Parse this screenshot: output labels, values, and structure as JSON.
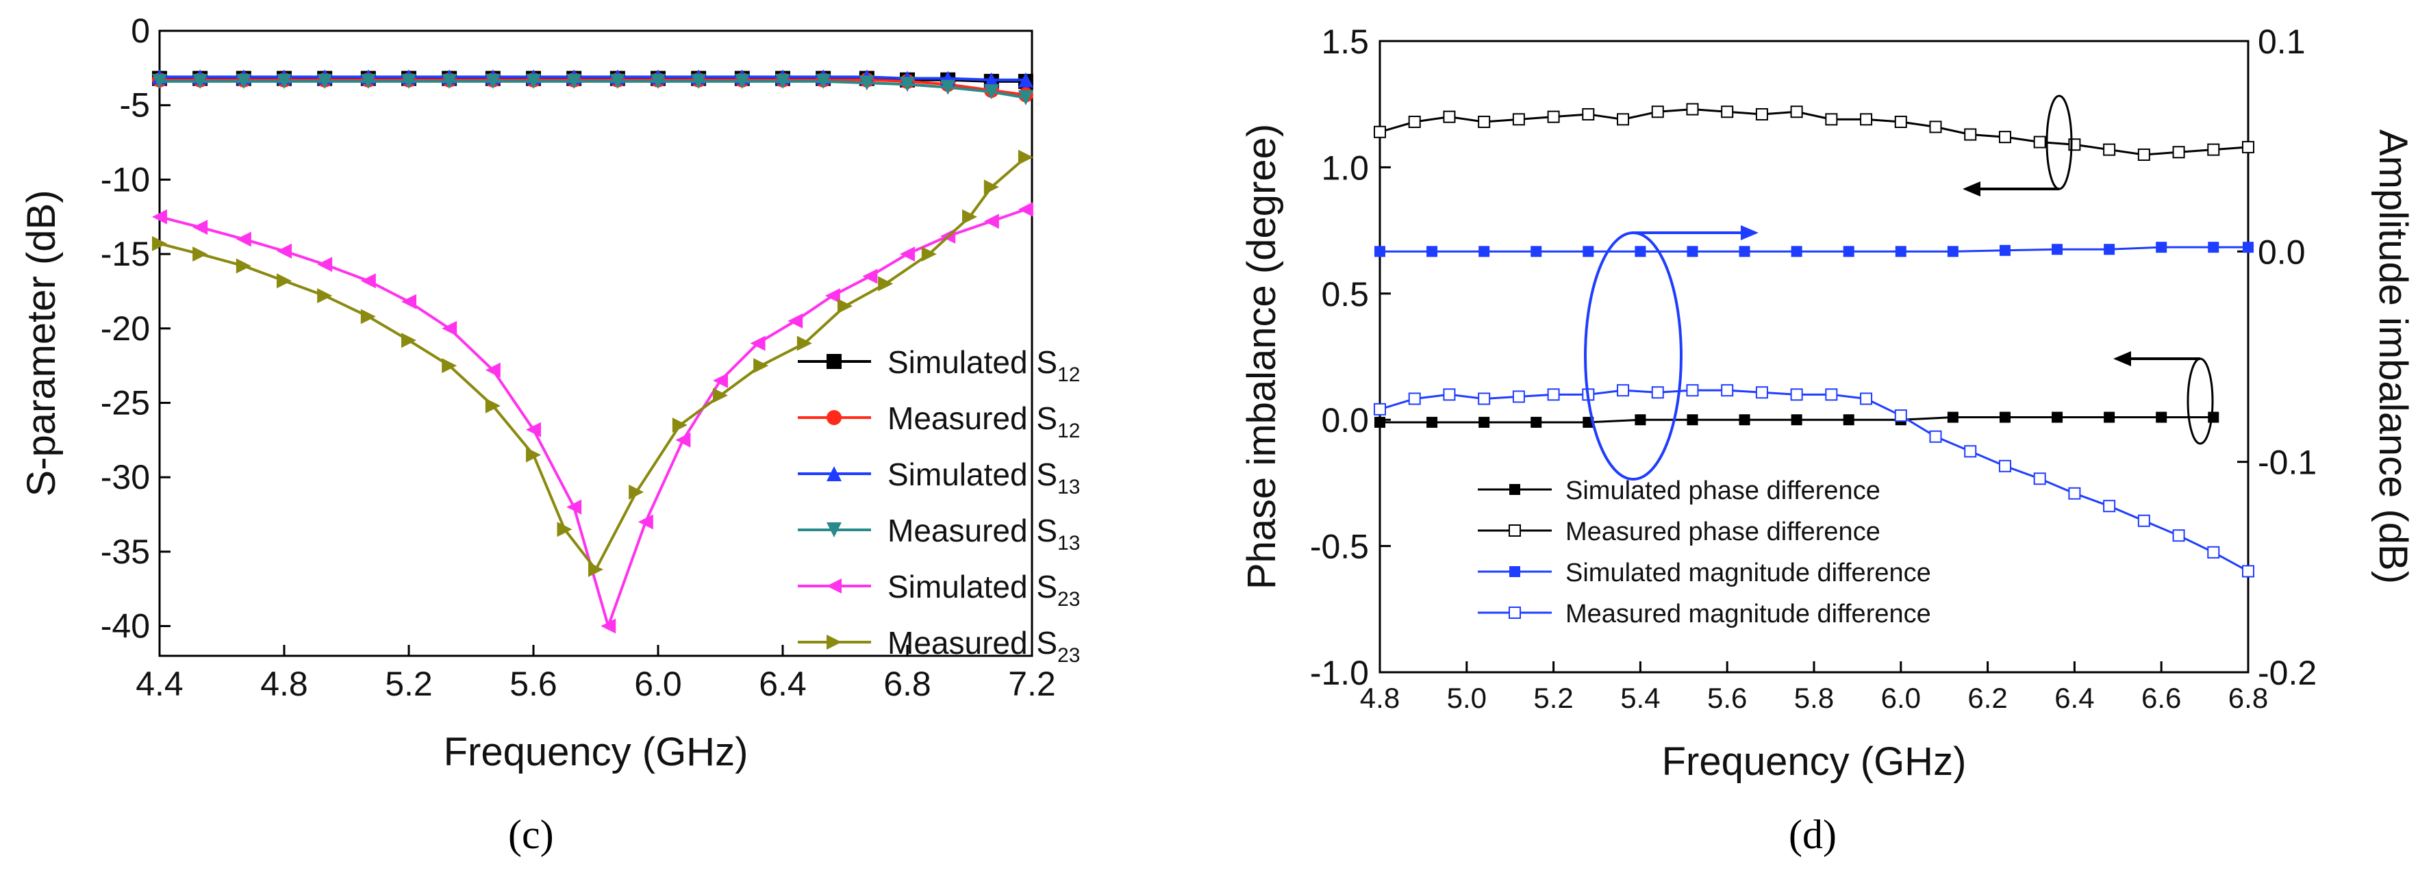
{
  "chart_data": [
    {
      "id": "c",
      "type": "line",
      "panel_label": "(c)",
      "xlabel": "Frequency (GHz)",
      "ylabel": "S-parameter (dB)",
      "xlim": [
        4.4,
        7.2
      ],
      "ylim": [
        -42,
        0
      ],
      "xticks": [
        4.4,
        4.8,
        5.2,
        5.6,
        6.0,
        6.4,
        6.8,
        7.2
      ],
      "xtick_labels": [
        "4.4",
        "4.8",
        "5.2",
        "5.6",
        "6.0",
        "6.4",
        "6.8",
        "7.2"
      ],
      "yticks": [
        0,
        -5,
        -10,
        -15,
        -20,
        -25,
        -30,
        -35,
        -40
      ],
      "ytick_labels": [
        "0",
        "-5",
        "-10",
        "-15",
        "-20",
        "-25",
        "-30",
        "-35",
        "-40"
      ],
      "legend_position": "lower-right",
      "series": [
        {
          "name": "Simulated S12",
          "label": "Simulated S",
          "sub": "12",
          "color": "#000000",
          "marker": "square",
          "x": [
            4.4,
            4.53,
            4.67,
            4.8,
            4.93,
            5.07,
            5.2,
            5.33,
            5.47,
            5.6,
            5.73,
            5.87,
            6.0,
            6.13,
            6.27,
            6.4,
            6.53,
            6.67,
            6.8,
            6.93,
            7.07,
            7.18
          ],
          "y": [
            -3.2,
            -3.2,
            -3.2,
            -3.2,
            -3.2,
            -3.2,
            -3.2,
            -3.2,
            -3.2,
            -3.2,
            -3.2,
            -3.2,
            -3.2,
            -3.2,
            -3.2,
            -3.2,
            -3.2,
            -3.2,
            -3.3,
            -3.3,
            -3.4,
            -3.4
          ]
        },
        {
          "name": "Measured S12",
          "label": "Measured S",
          "sub": "12",
          "color": "#ff2a1a",
          "marker": "circle",
          "x": [
            4.4,
            4.53,
            4.67,
            4.8,
            4.93,
            5.07,
            5.2,
            5.33,
            5.47,
            5.6,
            5.73,
            5.87,
            6.0,
            6.13,
            6.27,
            6.4,
            6.53,
            6.67,
            6.8,
            6.93,
            7.07,
            7.18
          ],
          "y": [
            -3.3,
            -3.3,
            -3.3,
            -3.3,
            -3.3,
            -3.3,
            -3.3,
            -3.3,
            -3.3,
            -3.3,
            -3.3,
            -3.3,
            -3.3,
            -3.3,
            -3.3,
            -3.3,
            -3.3,
            -3.3,
            -3.4,
            -3.6,
            -4.0,
            -4.3
          ]
        },
        {
          "name": "Simulated S13",
          "label": "Simulated S",
          "sub": "13",
          "color": "#1f3dff",
          "marker": "triangle-up",
          "x": [
            4.4,
            4.53,
            4.67,
            4.8,
            4.93,
            5.07,
            5.2,
            5.33,
            5.47,
            5.6,
            5.73,
            5.87,
            6.0,
            6.13,
            6.27,
            6.4,
            6.53,
            6.67,
            6.8,
            6.93,
            7.07,
            7.18
          ],
          "y": [
            -3.1,
            -3.1,
            -3.1,
            -3.1,
            -3.1,
            -3.1,
            -3.1,
            -3.1,
            -3.1,
            -3.1,
            -3.1,
            -3.1,
            -3.1,
            -3.1,
            -3.1,
            -3.1,
            -3.1,
            -3.1,
            -3.2,
            -3.2,
            -3.3,
            -3.3
          ]
        },
        {
          "name": "Measured S13",
          "label": "Measured S",
          "sub": "13",
          "color": "#2a8a8a",
          "marker": "triangle-down",
          "x": [
            4.4,
            4.53,
            4.67,
            4.8,
            4.93,
            5.07,
            5.2,
            5.33,
            5.47,
            5.6,
            5.73,
            5.87,
            6.0,
            6.13,
            6.27,
            6.4,
            6.53,
            6.67,
            6.8,
            6.93,
            7.07,
            7.18
          ],
          "y": [
            -3.4,
            -3.4,
            -3.4,
            -3.4,
            -3.4,
            -3.4,
            -3.4,
            -3.4,
            -3.4,
            -3.4,
            -3.4,
            -3.4,
            -3.4,
            -3.4,
            -3.4,
            -3.4,
            -3.4,
            -3.5,
            -3.6,
            -3.8,
            -4.1,
            -4.5
          ]
        },
        {
          "name": "Simulated S23",
          "label": "Simulated S",
          "sub": "23",
          "color": "#ff33ee",
          "marker": "triangle-left",
          "x": [
            4.4,
            4.53,
            4.67,
            4.8,
            4.93,
            5.07,
            5.2,
            5.33,
            5.47,
            5.6,
            5.73,
            5.84,
            5.96,
            6.08,
            6.2,
            6.32,
            6.44,
            6.56,
            6.68,
            6.8,
            6.93,
            7.07,
            7.18
          ],
          "y": [
            -12.5,
            -13.2,
            -14.0,
            -14.8,
            -15.7,
            -16.8,
            -18.2,
            -20.0,
            -22.8,
            -26.8,
            -32.0,
            -40.0,
            -33.0,
            -27.5,
            -23.5,
            -21.0,
            -19.5,
            -17.8,
            -16.5,
            -15.0,
            -13.8,
            -12.8,
            -12.0
          ]
        },
        {
          "name": "Measured S23",
          "label": "Measured S",
          "sub": "23",
          "color": "#8a8a10",
          "marker": "triangle-right",
          "x": [
            4.4,
            4.53,
            4.67,
            4.8,
            4.93,
            5.07,
            5.2,
            5.33,
            5.47,
            5.6,
            5.7,
            5.8,
            5.93,
            6.07,
            6.2,
            6.33,
            6.47,
            6.6,
            6.73,
            6.87,
            7.0,
            7.07,
            7.18
          ],
          "y": [
            -14.3,
            -15.0,
            -15.8,
            -16.8,
            -17.8,
            -19.2,
            -20.8,
            -22.5,
            -25.2,
            -28.5,
            -33.5,
            -36.2,
            -31.0,
            -26.5,
            -24.5,
            -22.5,
            -21.0,
            -18.5,
            -17.0,
            -15.0,
            -12.5,
            -10.5,
            -8.5
          ]
        }
      ]
    },
    {
      "id": "d",
      "type": "line",
      "panel_label": "(d)",
      "xlabel": "Frequency (GHz)",
      "ylabel": "Phase imbalance (degree)",
      "ylabel_right": "Amplitude imbalance (dB)",
      "xlim": [
        4.8,
        6.8
      ],
      "ylim": [
        -1.0,
        1.5
      ],
      "ylim_right": [
        -0.2,
        0.1
      ],
      "xticks": [
        4.8,
        5.0,
        5.2,
        5.4,
        5.6,
        5.8,
        6.0,
        6.2,
        6.4,
        6.6,
        6.8
      ],
      "xtick_labels": [
        "4.8",
        "5.0",
        "5.2",
        "5.4",
        "5.6",
        "5.8",
        "6.0",
        "6.2",
        "6.4",
        "6.6",
        "6.8"
      ],
      "yticks": [
        1.5,
        1.0,
        0.5,
        0.0,
        -0.5,
        -1.0
      ],
      "ytick_labels": [
        "1.5",
        "1.0",
        "0.5",
        "0.0",
        "-0.5",
        "-1.0"
      ],
      "yticks_right": [
        0.1,
        0.0,
        -0.1,
        -0.2
      ],
      "ytick_labels_right": [
        "0.1",
        "0.0",
        "-0.1",
        "-0.2"
      ],
      "legend_position": "lower-left",
      "series": [
        {
          "name": "Simulated phase difference",
          "label": "Simulated phase difference",
          "color": "#000000",
          "marker": "square-filled",
          "axis": "left",
          "x": [
            4.8,
            4.92,
            5.04,
            5.16,
            5.28,
            5.4,
            5.52,
            5.64,
            5.76,
            5.88,
            6.0,
            6.12,
            6.24,
            6.36,
            6.48,
            6.6,
            6.72
          ],
          "y": [
            -0.01,
            -0.01,
            -0.01,
            -0.01,
            -0.01,
            0.0,
            0.0,
            0.0,
            0.0,
            0.0,
            0.0,
            0.01,
            0.01,
            0.01,
            0.01,
            0.01,
            0.01
          ]
        },
        {
          "name": "Measured phase difference",
          "label": "Measured phase difference",
          "color": "#000000",
          "marker": "square-open",
          "axis": "left",
          "x": [
            4.8,
            4.88,
            4.96,
            5.04,
            5.12,
            5.2,
            5.28,
            5.36,
            5.44,
            5.52,
            5.6,
            5.68,
            5.76,
            5.84,
            5.92,
            6.0,
            6.08,
            6.16,
            6.24,
            6.32,
            6.4,
            6.48,
            6.56,
            6.64,
            6.72,
            6.8
          ],
          "y": [
            1.14,
            1.18,
            1.2,
            1.18,
            1.19,
            1.2,
            1.21,
            1.19,
            1.22,
            1.23,
            1.22,
            1.21,
            1.22,
            1.19,
            1.19,
            1.18,
            1.16,
            1.13,
            1.12,
            1.1,
            1.09,
            1.07,
            1.05,
            1.06,
            1.07,
            1.08
          ]
        },
        {
          "name": "Simulated magnitude difference",
          "label": "Simulated magnitude difference",
          "color": "#1f3dff",
          "marker": "square-filled",
          "axis": "right",
          "x": [
            4.8,
            4.92,
            5.04,
            5.16,
            5.28,
            5.4,
            5.52,
            5.64,
            5.76,
            5.88,
            6.0,
            6.12,
            6.24,
            6.36,
            6.48,
            6.6,
            6.72,
            6.8
          ],
          "y": [
            0.0,
            0.0,
            0.0,
            0.0,
            0.0,
            0.0,
            0.0,
            0.0,
            0.0,
            0.0,
            0.0,
            0.0,
            0.0005,
            0.001,
            0.001,
            0.002,
            0.002,
            0.002
          ]
        },
        {
          "name": "Measured magnitude difference",
          "label": "Measured magnitude difference",
          "color": "#1f3dff",
          "marker": "square-open",
          "axis": "right",
          "x": [
            4.8,
            4.88,
            4.96,
            5.04,
            5.12,
            5.2,
            5.28,
            5.36,
            5.44,
            5.52,
            5.6,
            5.68,
            5.76,
            5.84,
            5.92,
            6.0,
            6.08,
            6.16,
            6.24,
            6.32,
            6.4,
            6.48,
            6.56,
            6.64,
            6.72,
            6.8
          ],
          "y": [
            -0.075,
            -0.07,
            -0.068,
            -0.07,
            -0.069,
            -0.068,
            -0.068,
            -0.066,
            -0.067,
            -0.066,
            -0.066,
            -0.067,
            -0.068,
            -0.068,
            -0.07,
            -0.078,
            -0.088,
            -0.095,
            -0.102,
            -0.108,
            -0.115,
            -0.121,
            -0.128,
            -0.135,
            -0.143,
            -0.152
          ]
        }
      ],
      "annotations": [
        {
          "name": "phase-ellipse-arrow",
          "target_axis": "left"
        },
        {
          "name": "magnitude-ellipse-arrow",
          "target_axis": "right"
        },
        {
          "name": "simulated-phase-ellipse-arrow",
          "target_axis": "left"
        }
      ]
    }
  ]
}
